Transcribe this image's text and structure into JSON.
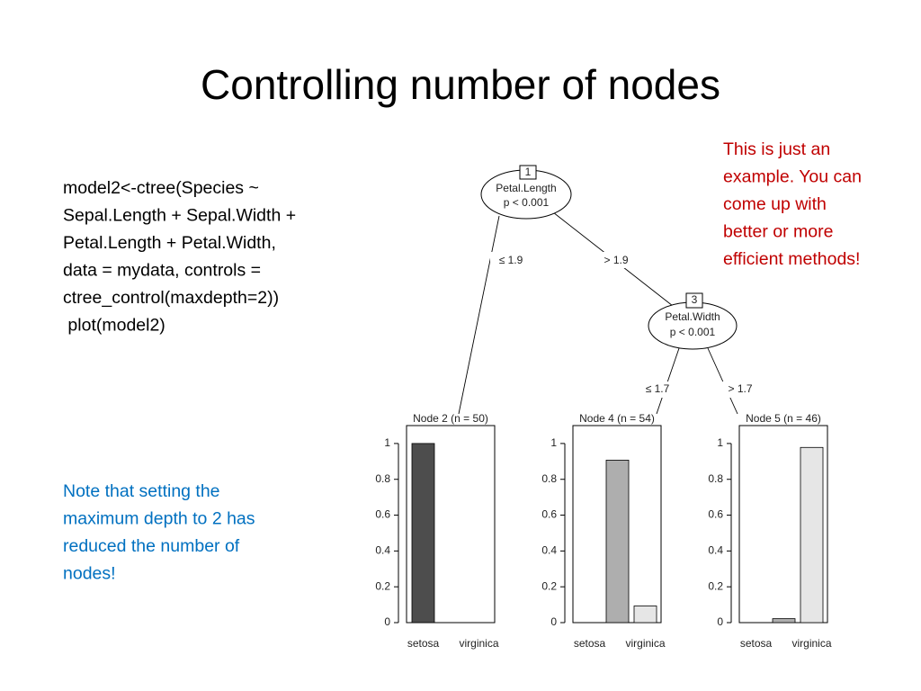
{
  "title": "Controlling number of nodes",
  "code": [
    "model2<-ctree(Species ~",
    "Sepal.Length + Sepal.Width +",
    "Petal.Length + Petal.Width,",
    "data = mydata, controls =",
    "ctree_control(maxdepth=2))",
    " plot(model2)"
  ],
  "note_red": [
    "This is just an",
    "example. You can",
    "come up with",
    "better or more",
    "efficient methods!"
  ],
  "note_blue": [
    "Note that setting the",
    "maximum depth to 2 has",
    "reduced the number of",
    "nodes!"
  ],
  "tree": {
    "nodes": [
      {
        "id": "1",
        "variable": "Petal.Length",
        "p": "p < 0.001"
      },
      {
        "id": "3",
        "variable": "Petal.Width",
        "p": "p < 0.001"
      }
    ],
    "edges": [
      "≤ 1.9",
      "> 1.9",
      "≤ 1.7",
      "> 1.7"
    ]
  },
  "chart_data": [
    {
      "type": "bar",
      "title": "Node 2 (n = 50)",
      "categories": [
        "setosa",
        null,
        "virginica"
      ],
      "values": [
        1,
        0,
        0
      ],
      "colors": [
        "#4d4d4d",
        "#aeaeae",
        "#e6e6e6"
      ],
      "ylim": [
        0,
        1.1
      ],
      "yticks": [
        0,
        0.2,
        0.4,
        0.6,
        0.8,
        1
      ]
    },
    {
      "type": "bar",
      "title": "Node 4 (n = 54)",
      "categories": [
        "setosa",
        null,
        "virginica"
      ],
      "values": [
        0,
        0.907,
        0.093
      ],
      "colors": [
        "#4d4d4d",
        "#aeaeae",
        "#e6e6e6"
      ],
      "ylim": [
        0,
        1.1
      ],
      "yticks": [
        0,
        0.2,
        0.4,
        0.6,
        0.8,
        1
      ]
    },
    {
      "type": "bar",
      "title": "Node 5 (n = 46)",
      "categories": [
        "setosa",
        null,
        "virginica"
      ],
      "values": [
        0,
        0.022,
        0.978
      ],
      "colors": [
        "#4d4d4d",
        "#aeaeae",
        "#e6e6e6"
      ],
      "ylim": [
        0,
        1.1
      ],
      "yticks": [
        0,
        0.2,
        0.4,
        0.6,
        0.8,
        1
      ]
    }
  ]
}
